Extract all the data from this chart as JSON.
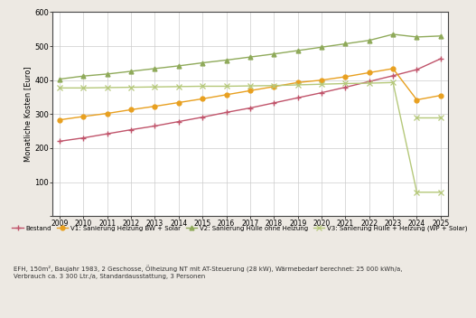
{
  "ylabel": "Monatliche Kosten [Euro]",
  "years": [
    2009,
    2010,
    2011,
    2012,
    2013,
    2014,
    2015,
    2016,
    2017,
    2018,
    2019,
    2020,
    2021,
    2022,
    2023,
    2024,
    2025
  ],
  "bestand": [
    220,
    230,
    242,
    254,
    265,
    278,
    291,
    305,
    318,
    333,
    348,
    363,
    379,
    396,
    413,
    431,
    463
  ],
  "v1": [
    283,
    293,
    302,
    313,
    323,
    334,
    345,
    357,
    369,
    381,
    393,
    400,
    410,
    422,
    434,
    342,
    355
  ],
  "v2": [
    403,
    412,
    418,
    426,
    434,
    442,
    451,
    459,
    468,
    477,
    487,
    497,
    507,
    517,
    535,
    527,
    530
  ],
  "v3": [
    377,
    377,
    378,
    379,
    380,
    381,
    382,
    382,
    383,
    384,
    386,
    388,
    390,
    391,
    393,
    70,
    70
  ],
  "bestand_color": "#c0536a",
  "v1_color": "#e8a020",
  "v2_color": "#8faa5a",
  "v3_color": "#b5c87a",
  "bg_color": "#ede9e3",
  "plot_bg_color": "#ffffff",
  "grid_color": "#cccccc",
  "ylim": [
    0,
    600
  ],
  "yticks": [
    0,
    100,
    200,
    300,
    400,
    500,
    600
  ],
  "footnote_line1": "EFH, 150m², Baujahr 1983, 2 Geschosse, Ölheizung NT mit AT-Steuerung (28 kW), Wärmebedarf berechnet: 25 000 kWh/a,",
  "footnote_line2": "Verbrauch ca. 3 300 Ltr./a, Standardausstattung, 3 Personen",
  "legend_bestand": "Bestand",
  "legend_v1": "V1: Sanierung Heizung BW + Solar",
  "legend_v2": "V2: Sanierung Hülle ohne Heizung",
  "legend_v3": "V3: Sanierung Hülle + Heizung (WP + Solar)"
}
